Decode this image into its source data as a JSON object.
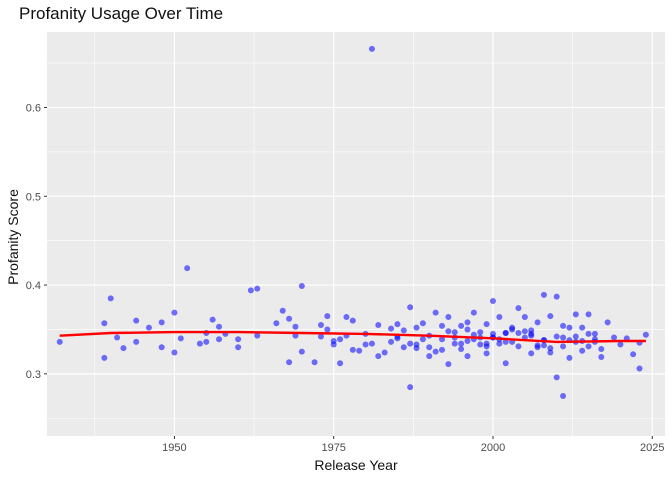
{
  "chart_data": {
    "type": "scatter",
    "title": "Profanity Usage Over Time",
    "xlabel": "Release Year",
    "ylabel": "Profanity Score",
    "xlim": [
      1930,
      2027
    ],
    "ylim": [
      0.23,
      0.685
    ],
    "x_ticks": [
      1950,
      1975,
      2000,
      2025
    ],
    "y_ticks": [
      0.3,
      0.4,
      0.5,
      0.6
    ],
    "x_tick_labels": [
      "1950",
      "1975",
      "2000",
      "2025"
    ],
    "y_tick_labels": [
      "0.3",
      "0.4",
      "0.5",
      "0.6"
    ],
    "grid": true,
    "legend": "none",
    "colors": {
      "points": "#0000FF",
      "trend": "#FF0000",
      "panel": "#EBEBEB",
      "grid": "#FFFFFF"
    },
    "series": [
      {
        "type": "scatter",
        "x": [
          1932,
          1939,
          1939,
          1940,
          1941,
          1942,
          1944,
          1944,
          1946,
          1948,
          1948,
          1950,
          1950,
          1951,
          1952,
          1954,
          1955,
          1955,
          1956,
          1957,
          1957,
          1958,
          1960,
          1960,
          1962,
          1963,
          1963,
          1966,
          1967,
          1968,
          1968,
          1969,
          1969,
          1970,
          1970,
          1972,
          1973,
          1973,
          1974,
          1974,
          1975,
          1975,
          1976,
          1976,
          1977,
          1977,
          1978,
          1978,
          1979,
          1980,
          1980,
          1981,
          1981,
          1982,
          1982,
          1983,
          1984,
          1984,
          1985,
          1985,
          1986,
          1986,
          1987,
          1987,
          1987,
          1988,
          1988,
          1989,
          1989,
          1990,
          1990,
          1991,
          1991,
          1992,
          1992,
          1993,
          1993,
          1994,
          1994,
          1995,
          1995,
          1996,
          1996,
          1997,
          1997,
          1998,
          1998,
          1999,
          1999,
          2000,
          2000,
          2001,
          2001,
          2002,
          2002,
          2003,
          2003,
          2004,
          2004,
          2005,
          2005,
          2006,
          2006,
          2007,
          2007,
          2008,
          2008,
          2009,
          2009,
          2010,
          2010,
          2010,
          2011,
          2011,
          2012,
          2012,
          2013,
          2013,
          2014,
          2014,
          2015,
          2015,
          2016,
          2016,
          2017,
          2017,
          2018,
          2019,
          2020,
          2021,
          2022,
          2023,
          2023,
          2024,
          1985,
          1990,
          1995,
          1998,
          2000,
          2002,
          2005,
          2008,
          2011,
          2014,
          1993,
          1996,
          1999,
          2003,
          2006,
          2009,
          2012,
          2015,
          1988,
          1997,
          2001,
          2004,
          2007,
          2013,
          1994,
          1999,
          2006,
          2016,
          1992,
          2002,
          2011,
          2008,
          2000,
          1996
        ],
        "y": [
          0.336,
          0.357,
          0.318,
          0.385,
          0.341,
          0.329,
          0.336,
          0.36,
          0.352,
          0.33,
          0.358,
          0.369,
          0.324,
          0.34,
          0.419,
          0.334,
          0.336,
          0.346,
          0.361,
          0.353,
          0.339,
          0.345,
          0.33,
          0.339,
          0.394,
          0.396,
          0.343,
          0.357,
          0.371,
          0.362,
          0.313,
          0.353,
          0.343,
          0.399,
          0.325,
          0.313,
          0.355,
          0.342,
          0.35,
          0.365,
          0.333,
          0.337,
          0.312,
          0.339,
          0.364,
          0.343,
          0.327,
          0.36,
          0.326,
          0.345,
          0.333,
          0.666,
          0.334,
          0.355,
          0.32,
          0.324,
          0.336,
          0.351,
          0.356,
          0.342,
          0.33,
          0.349,
          0.285,
          0.375,
          0.334,
          0.329,
          0.352,
          0.339,
          0.357,
          0.343,
          0.32,
          0.325,
          0.369,
          0.354,
          0.339,
          0.364,
          0.311,
          0.347,
          0.334,
          0.334,
          0.354,
          0.358,
          0.32,
          0.369,
          0.339,
          0.347,
          0.333,
          0.323,
          0.356,
          0.382,
          0.341,
          0.334,
          0.364,
          0.346,
          0.312,
          0.352,
          0.336,
          0.374,
          0.331,
          0.364,
          0.341,
          0.323,
          0.345,
          0.358,
          0.332,
          0.389,
          0.338,
          0.324,
          0.365,
          0.296,
          0.387,
          0.342,
          0.275,
          0.331,
          0.352,
          0.318,
          0.367,
          0.336,
          0.326,
          0.352,
          0.331,
          0.367,
          0.339,
          0.345,
          0.319,
          0.328,
          0.358,
          0.341,
          0.333,
          0.34,
          0.322,
          0.335,
          0.306,
          0.344,
          0.34,
          0.33,
          0.328,
          0.341,
          0.345,
          0.336,
          0.348,
          0.332,
          0.341,
          0.337,
          0.348,
          0.337,
          0.334,
          0.35,
          0.343,
          0.329,
          0.338,
          0.345,
          0.333,
          0.344,
          0.339,
          0.346,
          0.33,
          0.342,
          0.341,
          0.331,
          0.349,
          0.336,
          0.327,
          0.346,
          0.354,
          0.338,
          0.341,
          0.35
        ]
      },
      {
        "type": "line",
        "x": [
          1932,
          1940,
          1950,
          1960,
          1970,
          1980,
          1990,
          2000,
          2010,
          2020,
          2024
        ],
        "y": [
          0.343,
          0.346,
          0.347,
          0.347,
          0.346,
          0.345,
          0.343,
          0.34,
          0.336,
          0.337,
          0.337
        ]
      }
    ]
  }
}
